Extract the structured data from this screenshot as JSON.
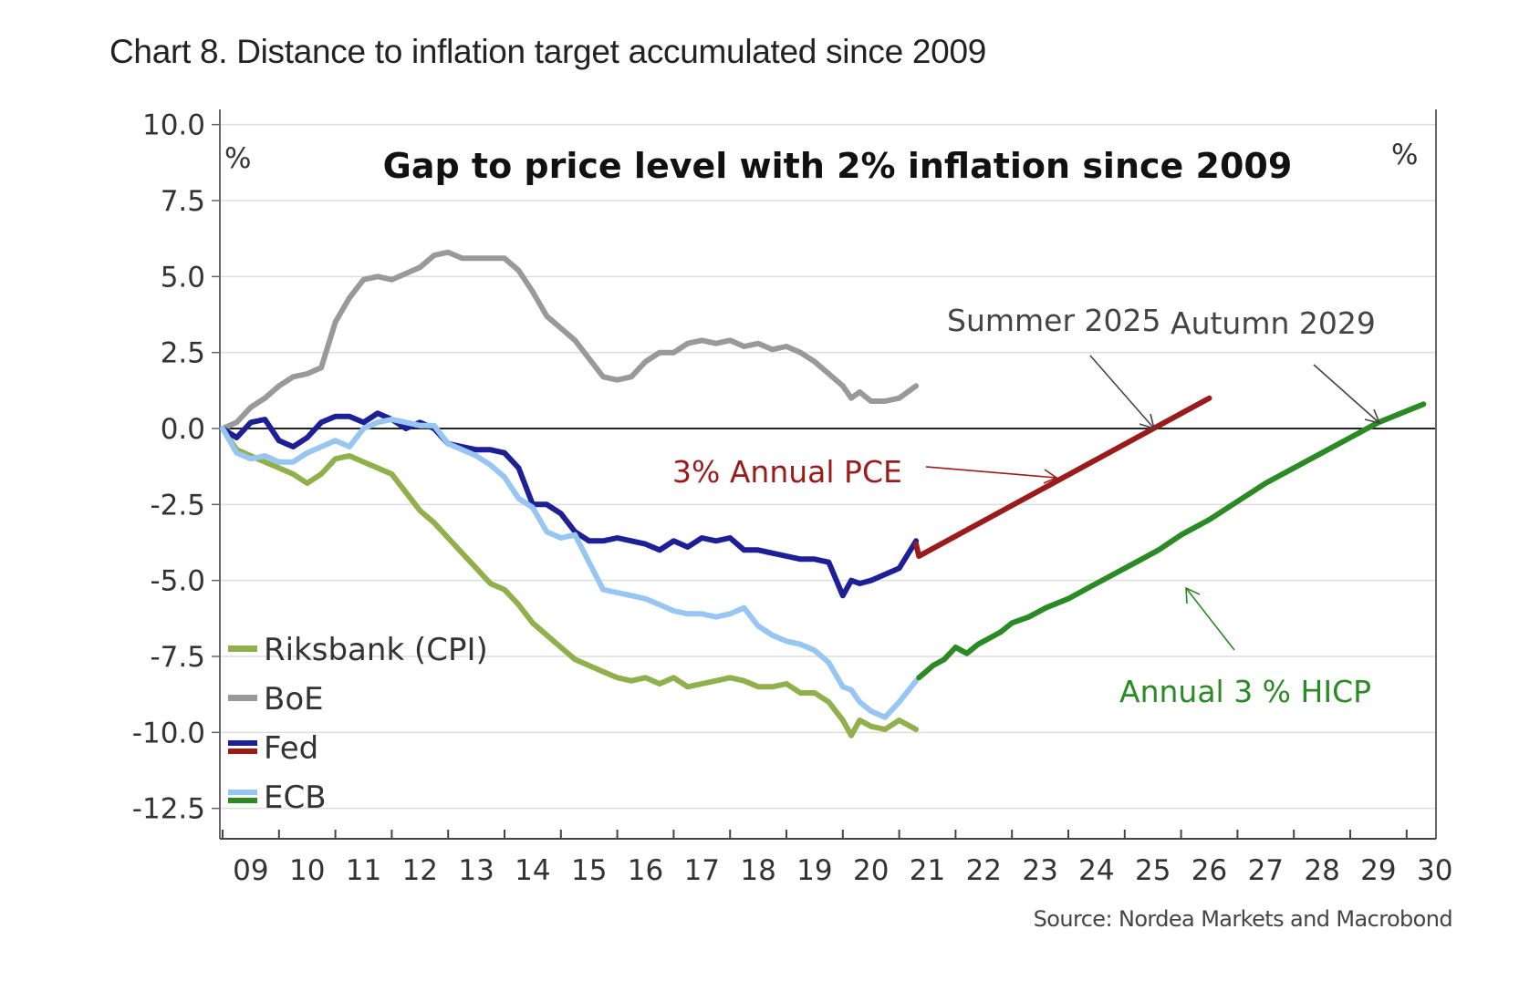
{
  "page": {
    "title": "Chart 8. Distance to inflation target accumulated since 2009",
    "source": "Source: Nordea Markets and Macrobond"
  },
  "chart_data": {
    "type": "line",
    "title": "Gap to price level with 2% inflation since 2009",
    "y_unit_left": "%",
    "y_unit_right": "%",
    "ylim": [
      -13.5,
      10.5
    ],
    "yticks": [
      10.0,
      7.5,
      5.0,
      2.5,
      0.0,
      -2.5,
      -5.0,
      -7.5,
      -10.0,
      -12.5
    ],
    "ytick_labels": [
      "10.0",
      "7.5",
      "5.0",
      "2.5",
      "0.0",
      "-2.5",
      "-5.0",
      "-7.5",
      "-10.0",
      "-12.5"
    ],
    "xlim": [
      2009,
      2030.5
    ],
    "xtick_labels": [
      "09",
      "10",
      "11",
      "12",
      "13",
      "14",
      "15",
      "16",
      "17",
      "18",
      "19",
      "20",
      "21",
      "22",
      "23",
      "24",
      "25",
      "26",
      "27",
      "28",
      "29",
      "30"
    ],
    "zero_line": true,
    "grid": "horizontal",
    "legend_placement": "bottom-left",
    "legend": [
      {
        "label": "Riksbank (CPI)",
        "colors": [
          "#8fb04a"
        ]
      },
      {
        "label": "BoE",
        "colors": [
          "#999999"
        ]
      },
      {
        "label": "Fed",
        "colors": [
          "#1c1f95",
          "#9b1b1b"
        ]
      },
      {
        "label": "ECB",
        "colors": [
          "#97c6f2",
          "#2a8a24"
        ]
      }
    ],
    "series": [
      {
        "key": "riksbank",
        "color": "#8fb04a",
        "x": [
          2009.0,
          2009.25,
          2009.5,
          2009.75,
          2010.0,
          2010.25,
          2010.5,
          2010.75,
          2011.0,
          2011.25,
          2011.5,
          2011.75,
          2012.0,
          2012.25,
          2012.5,
          2012.75,
          2013.0,
          2013.25,
          2013.5,
          2013.75,
          2014.0,
          2014.25,
          2014.5,
          2014.75,
          2015.0,
          2015.25,
          2015.5,
          2015.75,
          2016.0,
          2016.25,
          2016.5,
          2016.75,
          2017.0,
          2017.25,
          2017.5,
          2017.75,
          2018.0,
          2018.25,
          2018.5,
          2018.75,
          2019.0,
          2019.25,
          2019.5,
          2019.75,
          2020.0,
          2020.15,
          2020.3,
          2020.5,
          2020.75,
          2021.0,
          2021.3
        ],
        "y": [
          0.0,
          -0.7,
          -0.9,
          -1.1,
          -1.3,
          -1.5,
          -1.8,
          -1.5,
          -1.0,
          -0.9,
          -1.1,
          -1.3,
          -1.5,
          -2.1,
          -2.7,
          -3.1,
          -3.6,
          -4.1,
          -4.6,
          -5.1,
          -5.3,
          -5.8,
          -6.4,
          -6.8,
          -7.2,
          -7.6,
          -7.8,
          -8.0,
          -8.2,
          -8.3,
          -8.2,
          -8.4,
          -8.2,
          -8.5,
          -8.4,
          -8.3,
          -8.2,
          -8.3,
          -8.5,
          -8.5,
          -8.4,
          -8.7,
          -8.7,
          -9.0,
          -9.6,
          -10.1,
          -9.6,
          -9.8,
          -9.9,
          -9.6,
          -9.9
        ]
      },
      {
        "key": "boe",
        "color": "#999999",
        "x": [
          2009.0,
          2009.25,
          2009.5,
          2009.75,
          2010.0,
          2010.25,
          2010.5,
          2010.75,
          2011.0,
          2011.25,
          2011.5,
          2011.75,
          2012.0,
          2012.25,
          2012.5,
          2012.75,
          2013.0,
          2013.25,
          2013.5,
          2013.75,
          2014.0,
          2014.25,
          2014.5,
          2014.75,
          2015.0,
          2015.25,
          2015.5,
          2015.75,
          2016.0,
          2016.25,
          2016.5,
          2016.75,
          2017.0,
          2017.25,
          2017.5,
          2017.75,
          2018.0,
          2018.25,
          2018.5,
          2018.75,
          2019.0,
          2019.25,
          2019.5,
          2019.75,
          2020.0,
          2020.15,
          2020.3,
          2020.5,
          2020.75,
          2021.0,
          2021.3
        ],
        "y": [
          0.0,
          0.2,
          0.7,
          1.0,
          1.4,
          1.7,
          1.8,
          2.0,
          3.5,
          4.3,
          4.9,
          5.0,
          4.9,
          5.1,
          5.3,
          5.7,
          5.8,
          5.6,
          5.6,
          5.6,
          5.6,
          5.2,
          4.5,
          3.7,
          3.3,
          2.9,
          2.3,
          1.7,
          1.6,
          1.7,
          2.2,
          2.5,
          2.5,
          2.8,
          2.9,
          2.8,
          2.9,
          2.7,
          2.8,
          2.6,
          2.7,
          2.5,
          2.2,
          1.8,
          1.4,
          1.0,
          1.2,
          0.9,
          0.9,
          1.0,
          1.4
        ]
      },
      {
        "key": "fed",
        "color": "#1c1f95",
        "x": [
          2009.0,
          2009.25,
          2009.5,
          2009.75,
          2010.0,
          2010.25,
          2010.5,
          2010.75,
          2011.0,
          2011.25,
          2011.5,
          2011.75,
          2012.0,
          2012.25,
          2012.5,
          2012.75,
          2013.0,
          2013.25,
          2013.5,
          2013.75,
          2014.0,
          2014.25,
          2014.5,
          2014.75,
          2015.0,
          2015.25,
          2015.5,
          2015.75,
          2016.0,
          2016.25,
          2016.5,
          2016.75,
          2017.0,
          2017.25,
          2017.5,
          2017.75,
          2018.0,
          2018.25,
          2018.5,
          2018.75,
          2019.0,
          2019.25,
          2019.5,
          2019.75,
          2020.0,
          2020.15,
          2020.3,
          2020.5,
          2020.75,
          2021.0,
          2021.3
        ],
        "y": [
          0.0,
          -0.3,
          0.2,
          0.3,
          -0.4,
          -0.6,
          -0.3,
          0.2,
          0.4,
          0.4,
          0.2,
          0.5,
          0.3,
          0.0,
          0.2,
          0.0,
          -0.5,
          -0.6,
          -0.7,
          -0.7,
          -0.8,
          -1.3,
          -2.5,
          -2.5,
          -2.8,
          -3.4,
          -3.7,
          -3.7,
          -3.6,
          -3.7,
          -3.8,
          -4.0,
          -3.7,
          -3.9,
          -3.6,
          -3.7,
          -3.6,
          -4.0,
          -4.0,
          -4.1,
          -4.2,
          -4.3,
          -4.3,
          -4.4,
          -5.5,
          -5.0,
          -5.1,
          -5.0,
          -4.8,
          -4.6,
          -3.7
        ]
      },
      {
        "key": "ecb",
        "color": "#97c6f2",
        "x": [
          2009.0,
          2009.25,
          2009.5,
          2009.75,
          2010.0,
          2010.25,
          2010.5,
          2010.75,
          2011.0,
          2011.25,
          2011.5,
          2011.75,
          2012.0,
          2012.25,
          2012.5,
          2012.75,
          2013.0,
          2013.25,
          2013.5,
          2013.75,
          2014.0,
          2014.25,
          2014.5,
          2014.75,
          2015.0,
          2015.25,
          2015.5,
          2015.75,
          2016.0,
          2016.25,
          2016.5,
          2016.75,
          2017.0,
          2017.25,
          2017.5,
          2017.75,
          2018.0,
          2018.25,
          2018.5,
          2018.75,
          2019.0,
          2019.25,
          2019.5,
          2019.75,
          2020.0,
          2020.15,
          2020.3,
          2020.5,
          2020.75,
          2021.0,
          2021.3
        ],
        "y": [
          0.0,
          -0.8,
          -1.0,
          -0.9,
          -1.1,
          -1.1,
          -0.8,
          -0.6,
          -0.4,
          -0.6,
          0.0,
          0.2,
          0.3,
          0.2,
          0.1,
          0.1,
          -0.5,
          -0.7,
          -0.9,
          -1.2,
          -1.6,
          -2.3,
          -2.6,
          -3.4,
          -3.6,
          -3.5,
          -4.4,
          -5.3,
          -5.4,
          -5.5,
          -5.6,
          -5.8,
          -6.0,
          -6.1,
          -6.1,
          -6.2,
          -6.1,
          -5.9,
          -6.5,
          -6.8,
          -7.0,
          -7.1,
          -7.3,
          -7.7,
          -8.5,
          -8.6,
          -9.0,
          -9.3,
          -9.5,
          -9.0,
          -8.3
        ]
      },
      {
        "key": "fed_projection",
        "color": "#9b1b1b",
        "x": [
          2021.3,
          2021.35,
          2026.5
        ],
        "y": [
          -3.8,
          -4.2,
          1.0
        ]
      },
      {
        "key": "ecb_projection",
        "color": "#2a8a24",
        "x": [
          2021.35,
          2021.6,
          2021.8,
          2022.0,
          2022.2,
          2022.4,
          2022.6,
          2022.8,
          2023.0,
          2023.3,
          2023.6,
          2024.0,
          2024.4,
          2024.8,
          2025.2,
          2025.6,
          2026.0,
          2026.5,
          2027.0,
          2027.5,
          2028.0,
          2028.5,
          2029.0,
          2029.5,
          2030.3
        ],
        "y": [
          -8.2,
          -7.8,
          -7.6,
          -7.2,
          -7.4,
          -7.1,
          -6.9,
          -6.7,
          -6.4,
          -6.2,
          -5.9,
          -5.6,
          -5.2,
          -4.8,
          -4.4,
          -4.0,
          -3.5,
          -3.0,
          -2.4,
          -1.8,
          -1.3,
          -0.8,
          -0.3,
          0.2,
          0.8
        ]
      }
    ],
    "annotations": [
      {
        "text": "Summer 2025",
        "color": "#444444"
      },
      {
        "text": "Autumn 2029",
        "color": "#444444"
      },
      {
        "text": "3% Annual PCE",
        "color": "#9b1b1b"
      },
      {
        "text": "Annual 3 % HICP",
        "color": "#2a8a24"
      }
    ]
  }
}
